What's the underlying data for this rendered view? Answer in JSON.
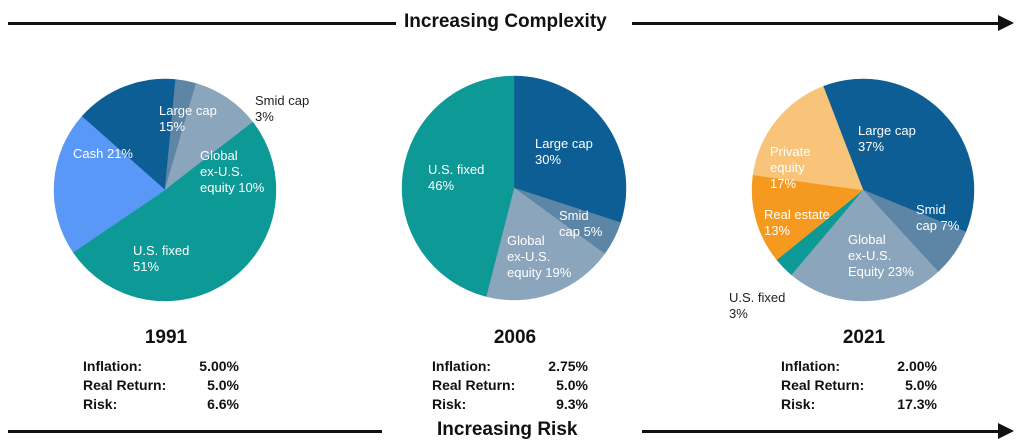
{
  "banner_top": {
    "label": "Increasing Complexity"
  },
  "banner_bottom": {
    "label": "Increasing Risk"
  },
  "stat_labels": {
    "inflation": "Inflation:",
    "real_return": "Real Return:",
    "risk": "Risk:"
  },
  "colors": {
    "Large cap": "#0d5e95",
    "Smid cap": "#5d86a6",
    "Global ex-U.S. equity": "#8ba6bc",
    "U.S. fixed": "#0d9a97",
    "Cash": "#5a98f7",
    "Private equity": "#f7c47a",
    "Real estate": "#f59a1f"
  },
  "chart_data": [
    {
      "type": "pie",
      "title": "1991",
      "slices": [
        {
          "category": "Large cap",
          "label": [
            "Large cap",
            "15%"
          ],
          "value": 15
        },
        {
          "category": "Smid cap",
          "label": [
            "Smid cap",
            "3%"
          ],
          "value": 3
        },
        {
          "category": "Global ex-U.S. equity",
          "label": [
            "Global",
            "ex-U.S.",
            "equity 10%"
          ],
          "value": 10
        },
        {
          "category": "U.S. fixed",
          "label": [
            "U.S. fixed",
            "51%"
          ],
          "value": 51
        },
        {
          "category": "Cash",
          "label": [
            "Cash 21%"
          ],
          "value": 21
        }
      ],
      "stats": {
        "inflation": "5.00%",
        "real_return": "5.0%",
        "risk": "6.6%"
      }
    },
    {
      "type": "pie",
      "title": "2006",
      "slices": [
        {
          "category": "Large cap",
          "label": [
            "Large cap",
            "30%"
          ],
          "value": 30
        },
        {
          "category": "Smid cap",
          "label": [
            "Smid",
            "cap 5%"
          ],
          "value": 5
        },
        {
          "category": "Global ex-U.S. equity",
          "label": [
            "Global",
            "ex-U.S.",
            "equity 19%"
          ],
          "value": 19
        },
        {
          "category": "U.S. fixed",
          "label": [
            "U.S. fixed",
            "46%"
          ],
          "value": 46
        }
      ],
      "stats": {
        "inflation": "2.75%",
        "real_return": "5.0%",
        "risk": "9.3%"
      }
    },
    {
      "type": "pie",
      "title": "2021",
      "slices": [
        {
          "category": "Large cap",
          "label": [
            "Large cap",
            "37%"
          ],
          "value": 37
        },
        {
          "category": "Smid cap",
          "label": [
            "Smid",
            "cap 7%"
          ],
          "value": 7
        },
        {
          "category": "Global ex-U.S. equity",
          "label": [
            "Global",
            "ex-U.S.",
            "Equity 23%"
          ],
          "value": 23
        },
        {
          "category": "U.S. fixed",
          "label": [
            "U.S. fixed",
            "3%"
          ],
          "value": 3
        },
        {
          "category": "Real estate",
          "label": [
            "Real estate",
            "13%"
          ],
          "value": 13
        },
        {
          "category": "Private equity",
          "label": [
            "Private",
            "equity",
            "17%"
          ],
          "value": 17
        }
      ],
      "stats": {
        "inflation": "2.00%",
        "real_return": "5.0%",
        "risk": "17.3%"
      }
    }
  ]
}
